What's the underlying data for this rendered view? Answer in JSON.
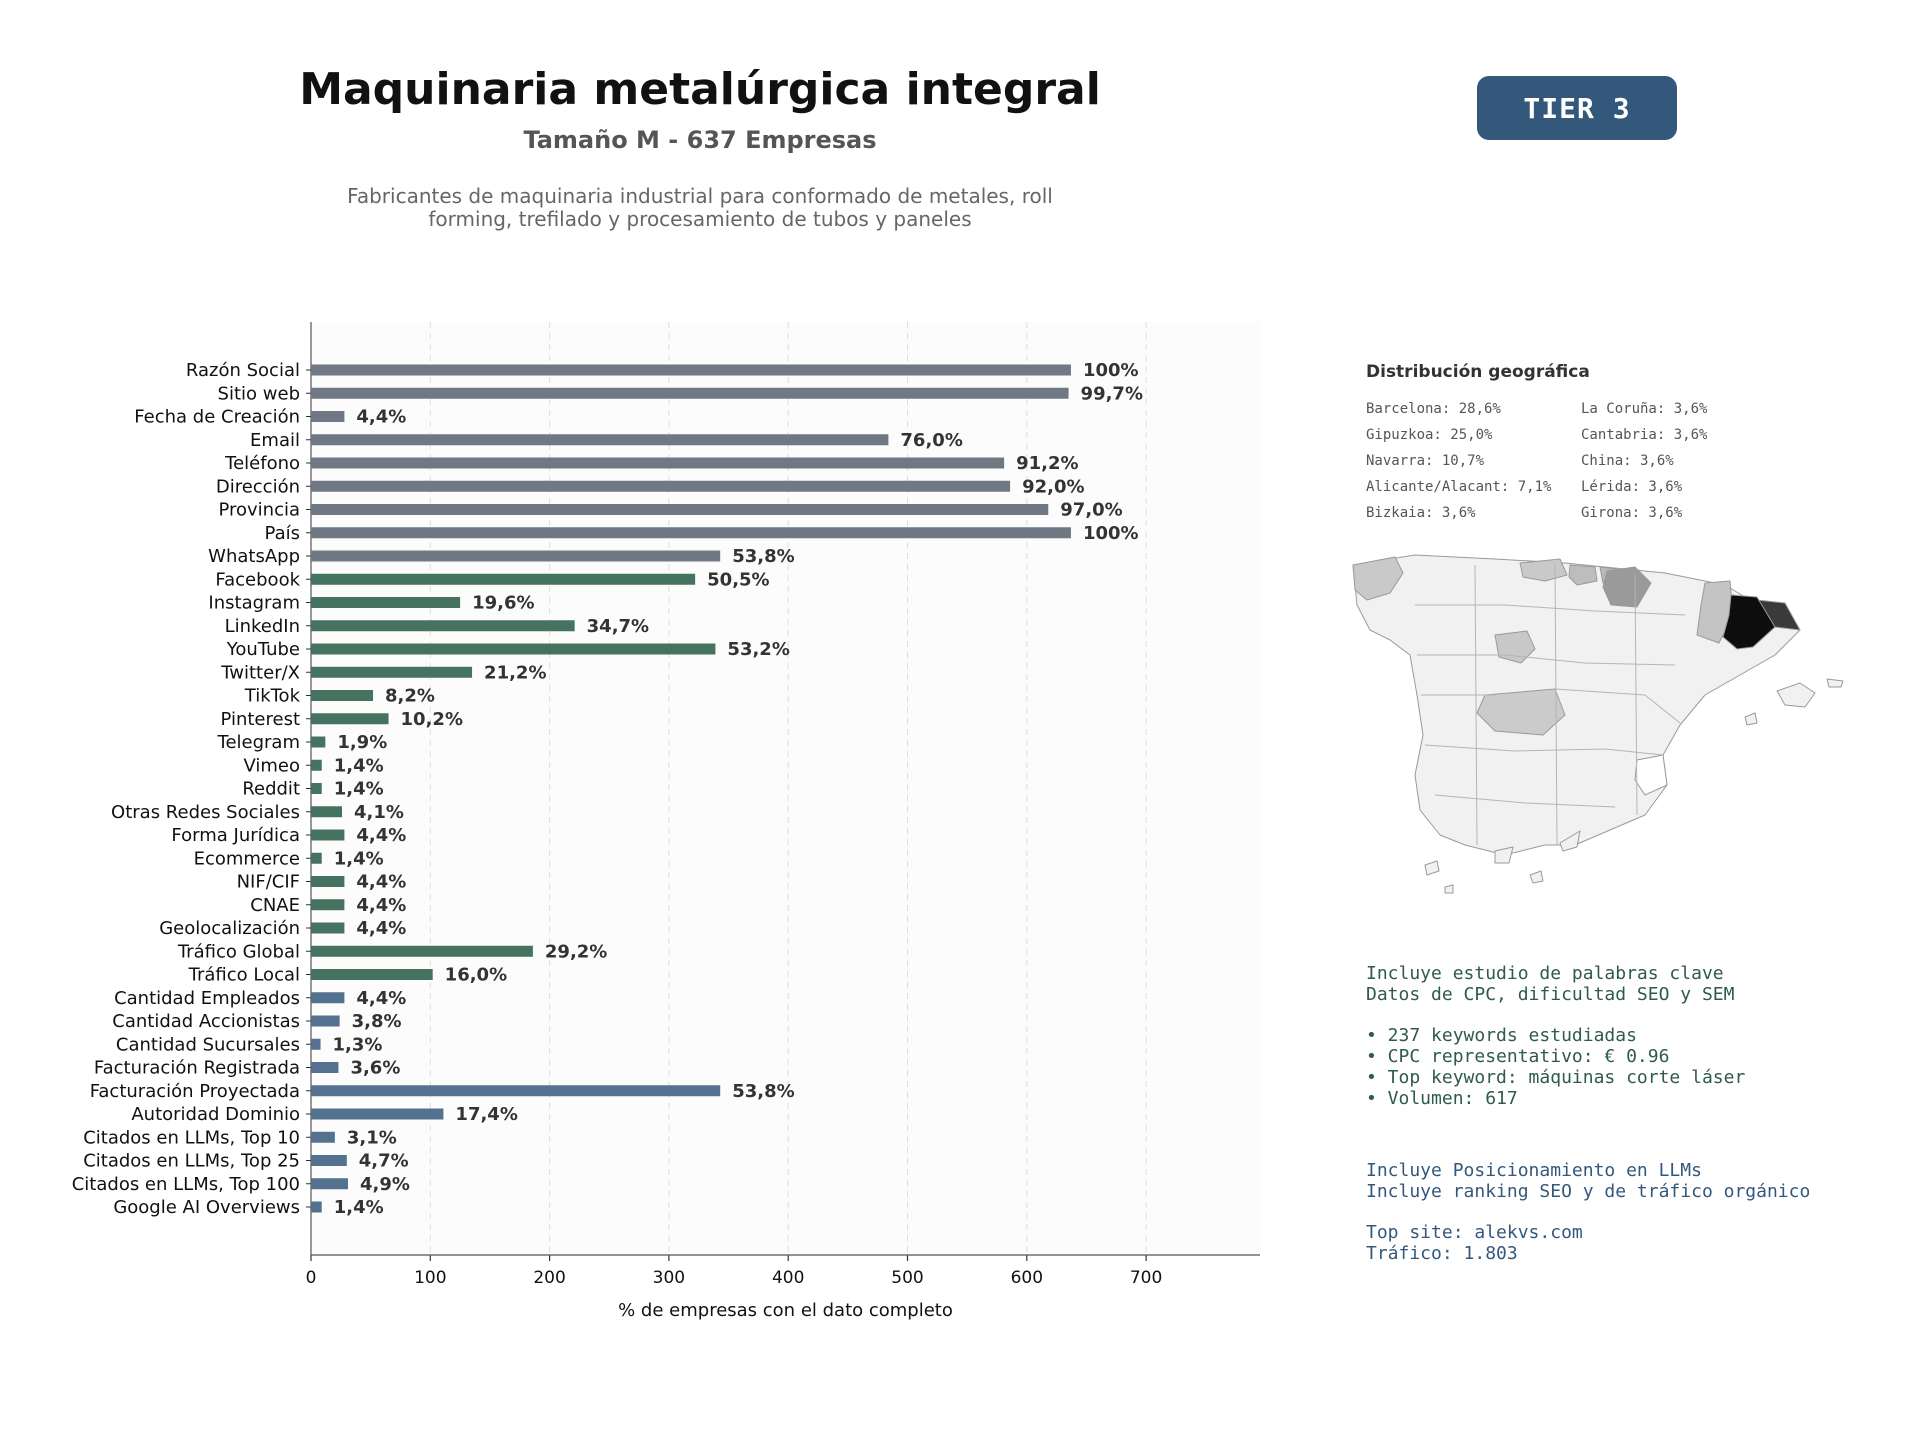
{
  "header": {
    "title": "Maquinaria metalúrgica integral",
    "subtitle": "Tamaño M - 637 Empresas",
    "description_line1": "Fabricantes de maquinaria industrial para conformado de metales, roll",
    "description_line2": "forming, trefilado y procesamiento de tubos y paneles",
    "tier": "TIER 3"
  },
  "chart_data": {
    "type": "bar",
    "orientation": "horizontal",
    "xlabel": "% de empresas con el dato completo",
    "xlim": [
      0,
      800
    ],
    "xticks": [
      0,
      100,
      200,
      300,
      400,
      500,
      600,
      700
    ],
    "grid": "vertical dashed",
    "categories": [
      "Razón Social",
      "Sitio web",
      "Fecha de Creación",
      "Email",
      "Teléfono",
      "Dirección",
      "Provincia",
      "País",
      "WhatsApp",
      "Facebook",
      "Instagram",
      "LinkedIn",
      "YouTube",
      "Twitter/X",
      "TikTok",
      "Pinterest",
      "Telegram",
      "Vimeo",
      "Reddit",
      "Otras Redes Sociales",
      "Forma Jurídica",
      "Ecommerce",
      "NIF/CIF",
      "CNAE",
      "Geolocalización",
      "Tráfico Global",
      "Tráfico Local",
      "Cantidad Empleados",
      "Cantidad Accionistas",
      "Cantidad Sucursales",
      "Facturación Registrada",
      "Facturación Proyectada",
      "Autoridad Dominio",
      "Citados en LLMs, Top 10",
      "Citados en LLMs, Top 25",
      "Citados en LLMs, Top 100",
      "Google AI Overviews"
    ],
    "values": [
      637,
      635,
      28,
      484,
      581,
      586,
      618,
      637,
      343,
      322,
      125,
      221,
      339,
      135,
      52,
      65,
      12,
      9,
      9,
      26,
      28,
      9,
      28,
      28,
      28,
      186,
      102,
      28,
      24,
      8,
      23,
      343,
      111,
      20,
      30,
      31,
      9
    ],
    "labels": [
      "100%",
      "99,7%",
      "4,4%",
      "76,0%",
      "91,2%",
      "92,0%",
      "97,0%",
      "100%",
      "53,8%",
      "50,5%",
      "19,6%",
      "34,7%",
      "53,2%",
      "21,2%",
      "8,2%",
      "10,2%",
      "1,9%",
      "1,4%",
      "1,4%",
      "4,1%",
      "4,4%",
      "1,4%",
      "4,4%",
      "4,4%",
      "4,4%",
      "29,2%",
      "16,0%",
      "4,4%",
      "3,8%",
      "1,3%",
      "3,6%",
      "53,8%",
      "17,4%",
      "3,1%",
      "4,7%",
      "4,9%",
      "1,4%"
    ],
    "groups": [
      "g",
      "g",
      "g",
      "g",
      "g",
      "g",
      "g",
      "g",
      "g",
      "t",
      "t",
      "t",
      "t",
      "t",
      "t",
      "t",
      "t",
      "t",
      "t",
      "t",
      "t",
      "t",
      "t",
      "t",
      "t",
      "t",
      "t",
      "b",
      "b",
      "b",
      "b",
      "b",
      "b",
      "b",
      "b",
      "b",
      "b"
    ],
    "colors": {
      "g": "#6f7883",
      "t": "#46735f",
      "b": "#54728f"
    }
  },
  "geo": {
    "title": "Distribución geográfica",
    "items": [
      "Barcelona: 28,6%",
      "La Coruña: 3,6%",
      "Gipuzkoa: 25,0%",
      "Cantabria: 3,6%",
      "Navarra: 10,7%",
      "China: 3,6%",
      "Alicante/Alacant: 7,1%",
      "Lérida: 3,6%",
      "Bizkaia: 3,6%",
      "Girona: 3,6%"
    ]
  },
  "keywords": {
    "line1": "Incluye estudio de palabras clave",
    "line2": "Datos de CPC, dificultad SEO y SEM",
    "bullet1": "• 237 keywords estudiadas",
    "bullet2": "• CPC representativo: € 0.96",
    "bullet3": "• Top keyword: máquinas corte láser",
    "bullet4": "• Volumen: 617"
  },
  "llm": {
    "line1": "Incluye Posicionamiento en LLMs",
    "line2": "Incluye ranking SEO y de tráfico orgánico",
    "top_site": "Top site: alekvs.com",
    "traffic": "Tráfico: 1.803"
  }
}
